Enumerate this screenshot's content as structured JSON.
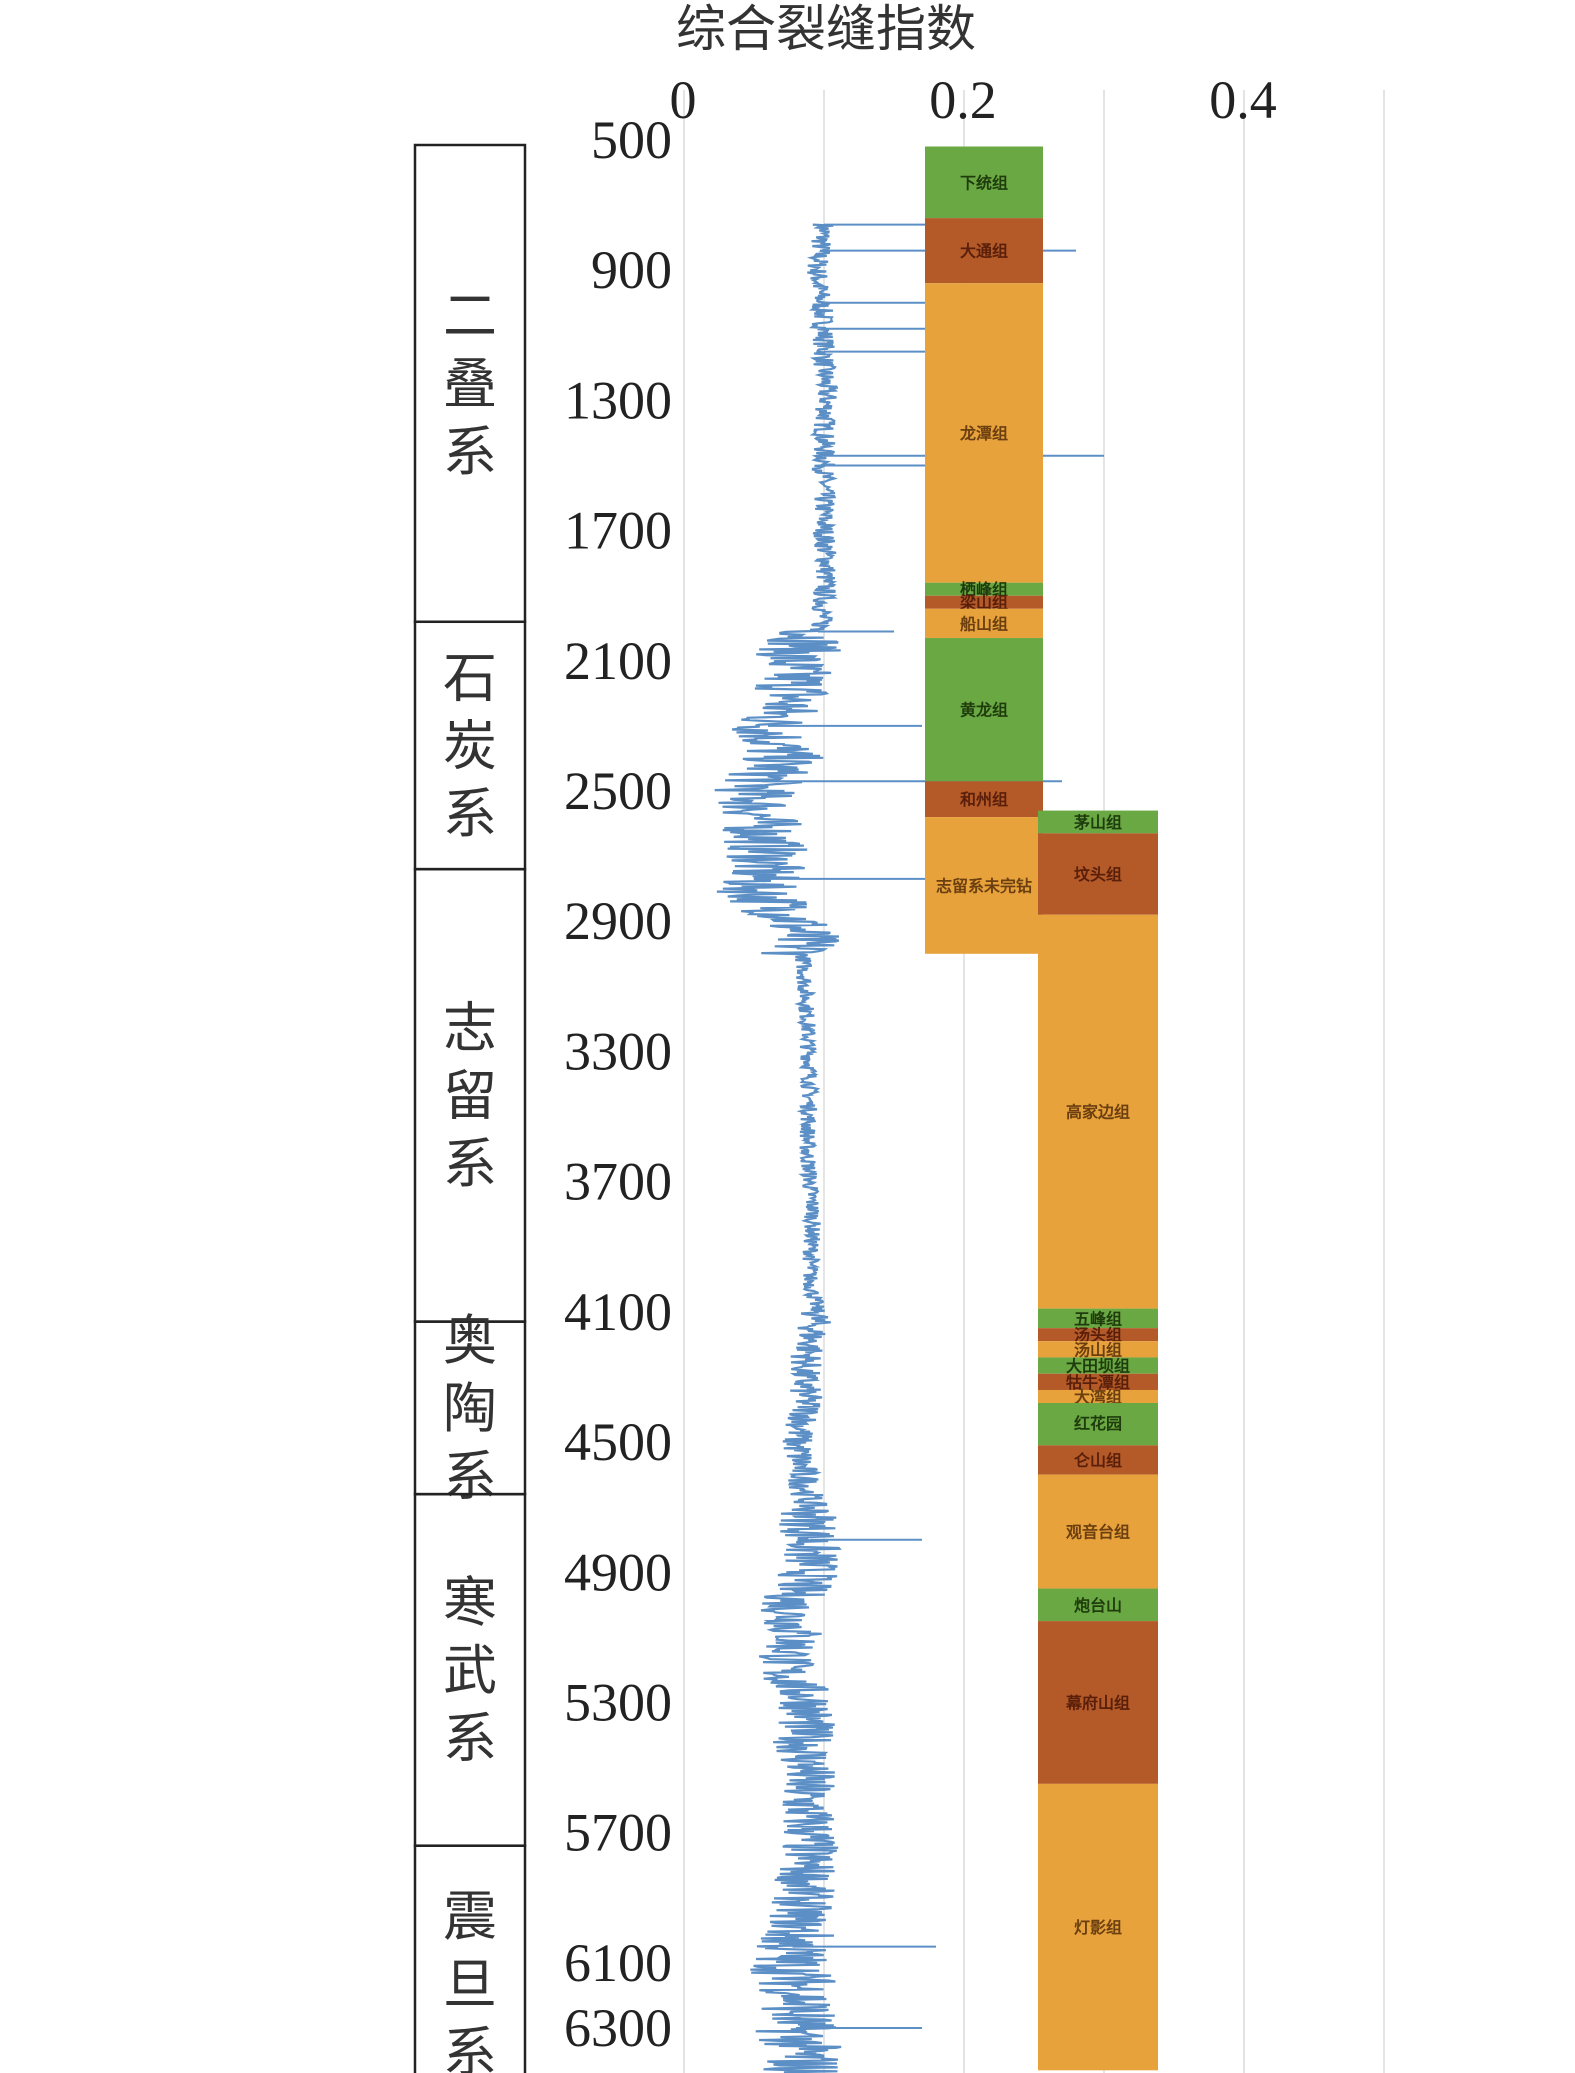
{
  "chart_data": {
    "type": "line",
    "title": "综合裂缝指数",
    "x_ticks": [
      "0",
      "0.2",
      "0.4"
    ],
    "xlim": [
      0,
      0.55
    ],
    "y_ticks": [
      "500",
      "900",
      "1300",
      "1700",
      "2100",
      "2500",
      "2900",
      "3300",
      "3700",
      "4100",
      "4500",
      "4900",
      "5300",
      "5700",
      "6100",
      "6300"
    ],
    "ylim": [
      500,
      6600
    ],
    "y_inverted": true,
    "grid": "vertical",
    "series": [
      {
        "color": "#5b8fc6",
        "x": [
          760,
          900,
          1000,
          1100,
          1200,
          1300,
          1400,
          1500,
          1600,
          1700,
          1800,
          1900,
          2000,
          2100,
          2200,
          2300,
          2400,
          2500,
          2600,
          2700,
          2800,
          2900,
          3000,
          3200,
          3400,
          3600,
          3800,
          4000,
          4100,
          4200,
          4300,
          4400,
          4500,
          4600,
          4700,
          4800,
          4900,
          5000,
          5100,
          5200,
          5300,
          5400,
          5500,
          5600,
          5700,
          5800,
          5900,
          6000,
          6100,
          6200,
          6300,
          6400,
          6520
        ],
        "y": [
          0.1,
          0.095,
          0.098,
          0.1,
          0.1,
          0.102,
          0.1,
          0.1,
          0.1,
          0.1,
          0.102,
          0.1,
          0.098,
          0.075,
          0.08,
          0.06,
          0.07,
          0.05,
          0.055,
          0.06,
          0.05,
          0.08,
          0.085,
          0.088,
          0.09,
          0.088,
          0.092,
          0.09,
          0.095,
          0.09,
          0.085,
          0.088,
          0.08,
          0.085,
          0.09,
          0.09,
          0.09,
          0.075,
          0.08,
          0.07,
          0.09,
          0.085,
          0.088,
          0.085,
          0.09,
          0.088,
          0.085,
          0.08,
          0.075,
          0.085,
          0.08,
          0.085,
          0.085
        ]
      }
    ],
    "spikes": [
      {
        "depth": 760,
        "value": 0.22
      },
      {
        "depth": 840,
        "value": 0.28
      },
      {
        "depth": 1000,
        "value": 0.19
      },
      {
        "depth": 1080,
        "value": 0.2
      },
      {
        "depth": 1150,
        "value": 0.24
      },
      {
        "depth": 1470,
        "value": 0.3
      },
      {
        "depth": 1500,
        "value": 0.19
      },
      {
        "depth": 2010,
        "value": 0.15
      },
      {
        "depth": 2300,
        "value": 0.17
      },
      {
        "depth": 2470,
        "value": 0.27
      },
      {
        "depth": 2770,
        "value": 0.21
      },
      {
        "depth": 4800,
        "value": 0.17
      },
      {
        "depth": 6050,
        "value": 0.18
      },
      {
        "depth": 6300,
        "value": 0.17
      }
    ]
  },
  "systems": [
    {
      "name": "二叠系",
      "top": 500,
      "bottom": 1980
    },
    {
      "name": "石炭系",
      "top": 1980,
      "bottom": 2740
    },
    {
      "name": "志留系",
      "top": 2740,
      "bottom": 4130
    },
    {
      "name": "奥陶系",
      "top": 4130,
      "bottom": 4660
    },
    {
      "name": "寒武系",
      "top": 4660,
      "bottom": 5740
    },
    {
      "name": "震旦系",
      "top": 5740,
      "bottom": 6590
    }
  ],
  "formations_left": [
    {
      "name": "下统组",
      "top": 520,
      "bottom": 740,
      "color": "#6aa844"
    },
    {
      "name": "大通组",
      "top": 740,
      "bottom": 940,
      "color": "#b45a28"
    },
    {
      "name": "龙潭组",
      "top": 940,
      "bottom": 1860,
      "color": "#e8a23c"
    },
    {
      "name": "栖峰组",
      "top": 1860,
      "bottom": 1900,
      "color": "#6aa844"
    },
    {
      "name": "梁山组",
      "top": 1900,
      "bottom": 1940,
      "color": "#b45a28"
    },
    {
      "name": "船山组",
      "top": 1940,
      "bottom": 2030,
      "color": "#e8a23c"
    },
    {
      "name": "黄龙组",
      "top": 2030,
      "bottom": 2470,
      "color": "#6aa844"
    },
    {
      "name": "和州组",
      "top": 2470,
      "bottom": 2580,
      "color": "#b45a28"
    },
    {
      "name": "志留系未完钻",
      "top": 2580,
      "bottom": 3000,
      "color": "#e8a23c"
    }
  ],
  "formations_right": [
    {
      "name": "茅山组",
      "top": 2560,
      "bottom": 2630,
      "color": "#6aa844"
    },
    {
      "name": "坟头组",
      "top": 2630,
      "bottom": 2880,
      "color": "#b45a28"
    },
    {
      "name": "高家边组",
      "top": 2880,
      "bottom": 4090,
      "color": "#e8a23c"
    },
    {
      "name": "五峰组",
      "top": 4090,
      "bottom": 4150,
      "color": "#6aa844"
    },
    {
      "name": "汤头组",
      "top": 4150,
      "bottom": 4190,
      "color": "#b45a28"
    },
    {
      "name": "汤山组",
      "top": 4190,
      "bottom": 4240,
      "color": "#e8a23c"
    },
    {
      "name": "大田坝组",
      "top": 4240,
      "bottom": 4290,
      "color": "#6aa844"
    },
    {
      "name": "牯牛潭组",
      "top": 4290,
      "bottom": 4340,
      "color": "#b45a28"
    },
    {
      "name": "大湾组",
      "top": 4340,
      "bottom": 4380,
      "color": "#e8a23c"
    },
    {
      "name": "红花园",
      "top": 4380,
      "bottom": 4510,
      "color": "#6aa844"
    },
    {
      "name": "仑山组",
      "top": 4510,
      "bottom": 4600,
      "color": "#b45a28"
    },
    {
      "name": "观音台组",
      "top": 4600,
      "bottom": 4950,
      "color": "#e8a23c"
    },
    {
      "name": "炮台山",
      "top": 4950,
      "bottom": 5050,
      "color": "#6aa844"
    },
    {
      "name": "幕府山组",
      "top": 5050,
      "bottom": 5550,
      "color": "#b45a28"
    },
    {
      "name": "灯影组",
      "top": 5550,
      "bottom": 6430,
      "color": "#e8a23c"
    }
  ]
}
